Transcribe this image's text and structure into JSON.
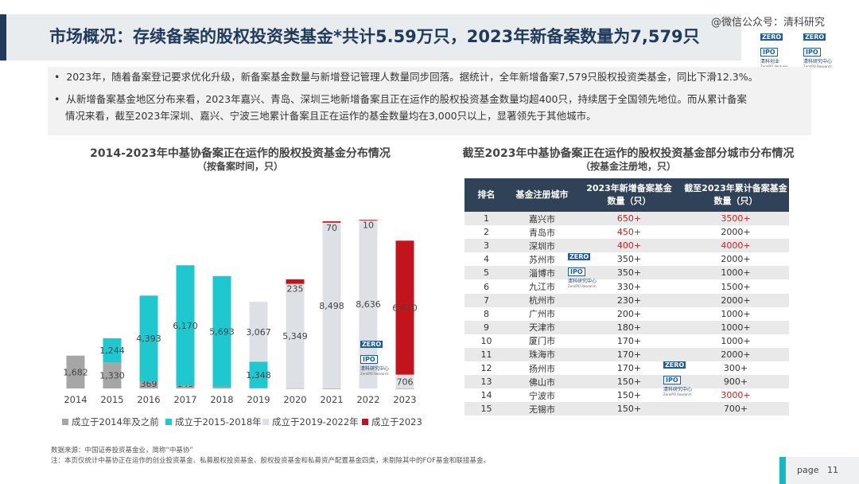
{
  "header": {
    "title": "市场概况：存续备案的股权投资类基金*共计5.59万只，2023年新备案数量为7,579只",
    "watermark": "@微信公众号：清科研究"
  },
  "logo": {
    "zero": "ZERO",
    "ipo": "IPO",
    "cn": "清科创业",
    "en": "ZeroIPO Ventures",
    "research_cn": "清科研究中心",
    "research_en": "ZeroIPO Research"
  },
  "bullets": [
    "2023年，随着备案登记要求优化升级，新备案基金数量与新增登记管理人数量同步回落。据统计，全年新增备案7,579只股权投资类基金，同比下滑12.3%。",
    "从新增备案基金地区分布来看，2023年嘉兴、青岛、深圳三地新增备案且正在运作的股权投资基金数量均超400只，持续居于全国领先地位。而从累计备案",
    "情况来看，截至2023年深圳、嘉兴、宁波三地累计备案且正在运作的基金数量均在3,000只以上，显著领先于其他城市。"
  ],
  "left_chart": {
    "title": "2014-2023年中基协备案正在运作的股权投资基金分布情况",
    "subtitle": "（按备案时间，只）"
  },
  "right_table": {
    "title": "截至2023年中基协备案正在运作的股权投资基金部分城市分布情况",
    "subtitle": "（按基金注册地，只）",
    "headers": [
      "排名",
      "基金注册城市",
      "2023年新增备案基金\n数量（只）",
      "截至2023年累计备案基金\n数量（只）"
    ],
    "rows": [
      [
        "1",
        "嘉兴市",
        "650+",
        "3500+"
      ],
      [
        "2",
        "青岛市",
        "450+",
        "2000+"
      ],
      [
        "3",
        "深圳市",
        "400+",
        "4000+"
      ],
      [
        "4",
        "苏州市",
        "350+",
        "2000+"
      ],
      [
        "5",
        "淄博市",
        "350+",
        "1000+"
      ],
      [
        "6",
        "九江市",
        "330+",
        "1500+"
      ],
      [
        "7",
        "杭州市",
        "230+",
        "2000+"
      ],
      [
        "8",
        "广州市",
        "200+",
        "1000+"
      ],
      [
        "9",
        "天津市",
        "180+",
        "1000+"
      ],
      [
        "10",
        "厦门市",
        "170+",
        "1000+"
      ],
      [
        "11",
        "珠海市",
        "170+",
        "2000+"
      ],
      [
        "12",
        "扬州市",
        "170+",
        "300+"
      ],
      [
        "13",
        "佛山市",
        "150+",
        "900+"
      ],
      [
        "14",
        "宁波市",
        "150+",
        "3000+"
      ],
      [
        "15",
        "无锡市",
        "150+",
        "700+"
      ]
    ],
    "highlight_color": "#d0201c"
  },
  "chart_data": {
    "type": "bar",
    "categories": [
      "2014",
      "2015",
      "2016",
      "2017",
      "2018",
      "2019",
      "2020",
      "2021",
      "2022",
      "2023"
    ],
    "series": [
      {
        "name": "成立于2014年及之前",
        "color": "#a6a6a6",
        "values": [
          1682,
          1330,
          369,
          149,
          72,
          26,
          14,
          2,
          null,
          3
        ]
      },
      {
        "name": "成立于2015-2018年",
        "color": "#1fc7cf",
        "values": [
          null,
          1244,
          4393,
          6170,
          5693,
          1348,
          null,
          null,
          null,
          null
        ]
      },
      {
        "name": "成立于2019-2022年",
        "color": "#dde0e4",
        "values": [
          null,
          null,
          null,
          null,
          null,
          3067,
          5349,
          8498,
          8636,
          706
        ]
      },
      {
        "name": "成立于2023",
        "color": "#c4141b",
        "values": [
          null,
          null,
          null,
          null,
          null,
          null,
          235,
          70,
          10,
          6870
        ]
      }
    ],
    "ylim": [
      0,
      10000
    ]
  },
  "footnote": [
    "数据来源：中国证券投资基金业，简称“中基协”",
    "注：本页仅统计中基协正在运作的创业投资基金、私募股权投资基金、股权投资基金和私募资产配置基金四类，未剔除其中的FOF基金和联接基金。"
  ],
  "page": {
    "label": "page",
    "number": "11"
  }
}
